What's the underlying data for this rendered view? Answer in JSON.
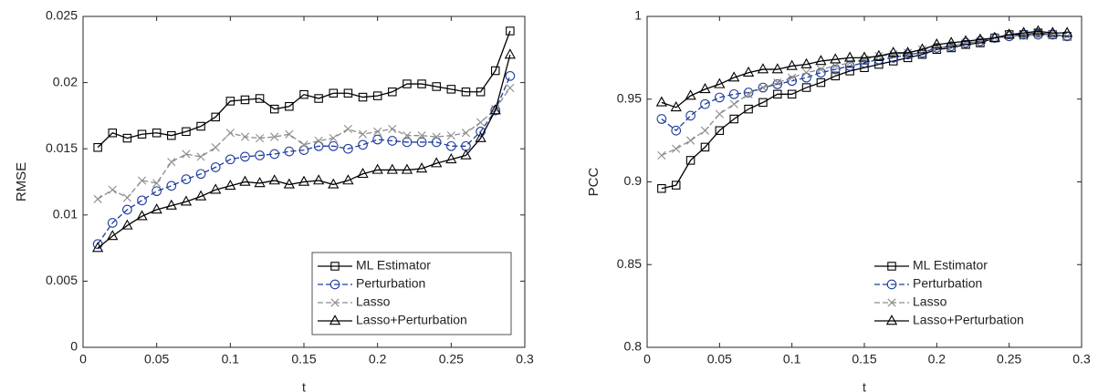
{
  "chart_data": [
    {
      "type": "line",
      "xlabel": "t",
      "ylabel": "RMSE",
      "x": [
        0.01,
        0.02,
        0.03,
        0.04,
        0.05,
        0.06,
        0.07,
        0.08,
        0.09,
        0.1,
        0.11,
        0.12,
        0.13,
        0.14,
        0.15,
        0.16,
        0.17,
        0.18,
        0.19,
        0.2,
        0.21,
        0.22,
        0.23,
        0.24,
        0.25,
        0.26,
        0.27,
        0.28,
        0.29
      ],
      "xlim": [
        0,
        0.3
      ],
      "xticks": [
        0,
        0.05,
        0.1,
        0.15,
        0.2,
        0.25,
        0.3
      ],
      "ylim": [
        0,
        0.025
      ],
      "yticks": [
        0,
        0.005,
        0.01,
        0.015,
        0.02,
        0.025
      ],
      "legend": "lower right",
      "legend_box": true,
      "series": [
        {
          "name": "ML Estimator",
          "color": "#000000",
          "dash": "solid",
          "marker": "square",
          "values": [
            0.0151,
            0.0162,
            0.0158,
            0.0161,
            0.0162,
            0.016,
            0.0163,
            0.0167,
            0.0174,
            0.0186,
            0.0187,
            0.0188,
            0.018,
            0.0182,
            0.0191,
            0.0188,
            0.0192,
            0.0192,
            0.0189,
            0.019,
            0.0193,
            0.0199,
            0.0199,
            0.0197,
            0.0195,
            0.0193,
            0.0193,
            0.0209,
            0.0239
          ]
        },
        {
          "name": "Perturbation",
          "color": "#1f3d9c",
          "dash": "dashed",
          "marker": "circle",
          "values": [
            0.0078,
            0.0094,
            0.0104,
            0.0111,
            0.0118,
            0.0122,
            0.0127,
            0.0131,
            0.0136,
            0.0142,
            0.0144,
            0.0145,
            0.0146,
            0.0148,
            0.0149,
            0.0152,
            0.0152,
            0.015,
            0.0153,
            0.0157,
            0.0156,
            0.0155,
            0.0155,
            0.0155,
            0.0152,
            0.0152,
            0.0163,
            0.0179,
            0.0205
          ]
        },
        {
          "name": "Lasso",
          "color": "#8c8c8c",
          "dash": "dashed",
          "marker": "x",
          "values": [
            0.0112,
            0.0119,
            0.0113,
            0.0126,
            0.0124,
            0.014,
            0.0146,
            0.0144,
            0.0151,
            0.0162,
            0.0159,
            0.0158,
            0.0159,
            0.0161,
            0.0153,
            0.0156,
            0.0158,
            0.0165,
            0.0161,
            0.0163,
            0.0165,
            0.016,
            0.016,
            0.0159,
            0.016,
            0.0162,
            0.017,
            0.018,
            0.0196
          ]
        },
        {
          "name": "Lasso+Perturbation",
          "color": "#000000",
          "dash": "solid",
          "marker": "triangle",
          "values": [
            0.0075,
            0.0084,
            0.0092,
            0.0099,
            0.0104,
            0.0107,
            0.011,
            0.0114,
            0.0119,
            0.0122,
            0.0125,
            0.0124,
            0.0126,
            0.0123,
            0.0125,
            0.0126,
            0.0123,
            0.0126,
            0.0131,
            0.0134,
            0.0134,
            0.0134,
            0.0135,
            0.0139,
            0.0142,
            0.0145,
            0.0158,
            0.0179,
            0.0221
          ]
        }
      ]
    },
    {
      "type": "line",
      "xlabel": "t",
      "ylabel": "PCC",
      "x": [
        0.01,
        0.02,
        0.03,
        0.04,
        0.05,
        0.06,
        0.07,
        0.08,
        0.09,
        0.1,
        0.11,
        0.12,
        0.13,
        0.14,
        0.15,
        0.16,
        0.17,
        0.18,
        0.19,
        0.2,
        0.21,
        0.22,
        0.23,
        0.24,
        0.25,
        0.26,
        0.27,
        0.28,
        0.29
      ],
      "xlim": [
        0,
        0.3
      ],
      "xticks": [
        0,
        0.05,
        0.1,
        0.15,
        0.2,
        0.25,
        0.3
      ],
      "ylim": [
        0.8,
        1
      ],
      "yticks": [
        0.8,
        0.85,
        0.9,
        0.95,
        1
      ],
      "legend": "lower right",
      "legend_box": false,
      "series": [
        {
          "name": "ML Estimator",
          "color": "#000000",
          "dash": "solid",
          "marker": "square",
          "values": [
            0.896,
            0.898,
            0.913,
            0.921,
            0.931,
            0.938,
            0.944,
            0.948,
            0.953,
            0.953,
            0.957,
            0.96,
            0.964,
            0.967,
            0.969,
            0.971,
            0.973,
            0.975,
            0.977,
            0.98,
            0.981,
            0.983,
            0.984,
            0.987,
            0.989,
            0.989,
            0.99,
            0.989,
            0.988
          ]
        },
        {
          "name": "Perturbation",
          "color": "#1f3d9c",
          "dash": "dashed",
          "marker": "circle",
          "values": [
            0.938,
            0.931,
            0.94,
            0.947,
            0.951,
            0.953,
            0.954,
            0.957,
            0.959,
            0.961,
            0.963,
            0.966,
            0.968,
            0.97,
            0.972,
            0.974,
            0.975,
            0.977,
            0.978,
            0.981,
            0.982,
            0.984,
            0.985,
            0.987,
            0.988,
            0.989,
            0.989,
            0.989,
            0.988
          ]
        },
        {
          "name": "Lasso",
          "color": "#8c8c8c",
          "dash": "dashed",
          "marker": "x",
          "values": [
            0.916,
            0.92,
            0.925,
            0.931,
            0.941,
            0.947,
            0.953,
            0.957,
            0.96,
            0.963,
            0.966,
            0.968,
            0.97,
            0.972,
            0.974,
            0.976,
            0.977,
            0.978,
            0.98,
            0.981,
            0.982,
            0.984,
            0.985,
            0.987,
            0.988,
            0.988,
            0.989,
            0.989,
            0.988
          ]
        },
        {
          "name": "Lasso+Perturbation",
          "color": "#000000",
          "dash": "solid",
          "marker": "triangle",
          "values": [
            0.948,
            0.945,
            0.952,
            0.956,
            0.959,
            0.963,
            0.966,
            0.968,
            0.968,
            0.97,
            0.971,
            0.973,
            0.974,
            0.975,
            0.975,
            0.976,
            0.978,
            0.978,
            0.98,
            0.983,
            0.984,
            0.985,
            0.986,
            0.987,
            0.989,
            0.99,
            0.991,
            0.99,
            0.99
          ]
        }
      ]
    }
  ]
}
